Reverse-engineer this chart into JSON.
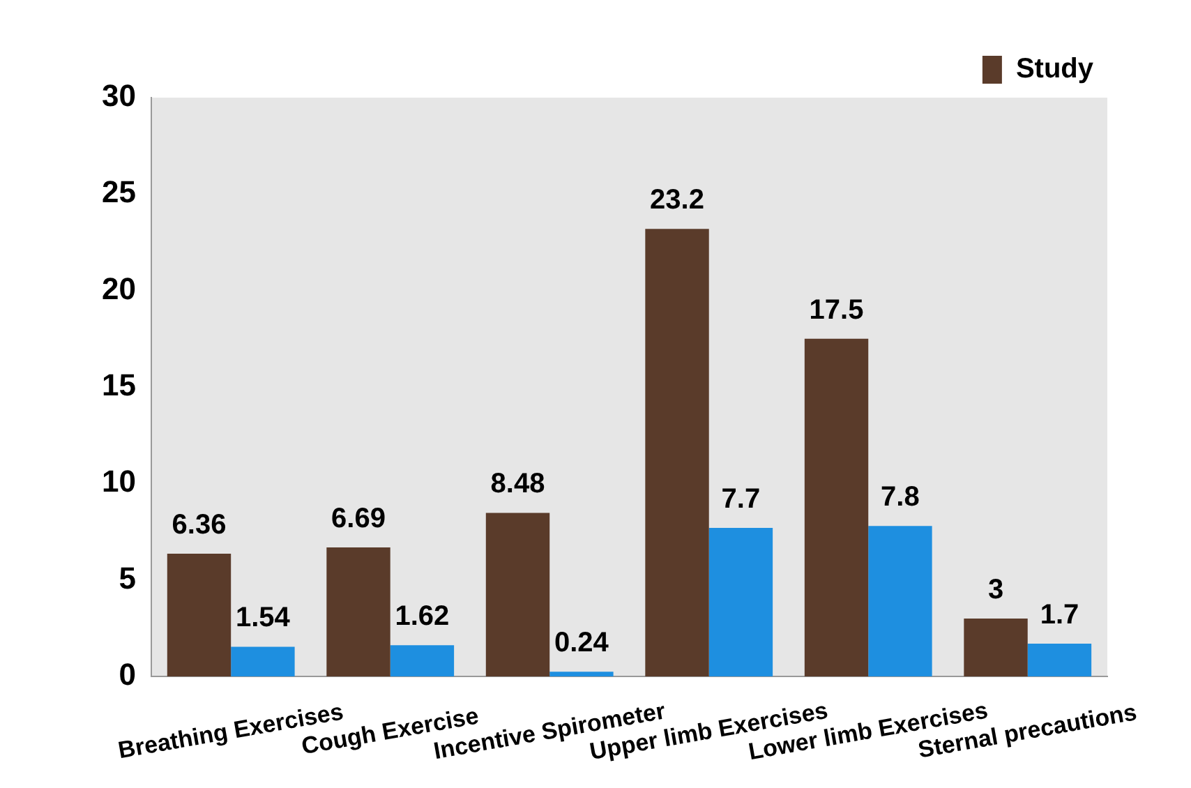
{
  "chart_data": {
    "type": "bar",
    "categories": [
      "Breathing Exercises",
      "Cough Exercise",
      "Incentive Spirometer",
      "Upper limb Exercises",
      "Lower limb Exercises",
      "Sternal precautions"
    ],
    "series": [
      {
        "name": "Study",
        "color": "#5a3b2a",
        "values": [
          6.36,
          6.69,
          8.48,
          23.2,
          17.5,
          3
        ]
      },
      {
        "color": "#1e8fe0",
        "values": [
          1.54,
          1.62,
          0.24,
          7.7,
          7.8,
          1.7
        ]
      }
    ],
    "ylim": [
      0,
      30
    ],
    "yticks": [
      0,
      5,
      10,
      15,
      20,
      25,
      30
    ],
    "grid": false,
    "legend": "top right",
    "data_labels": true
  }
}
